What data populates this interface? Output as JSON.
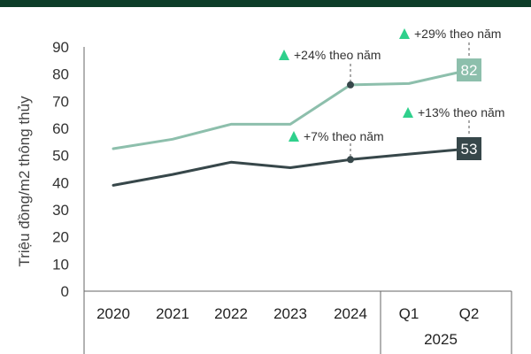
{
  "colors": {
    "header": "#0d3d28",
    "series_upper": "#8dbfac",
    "series_lower": "#37474a",
    "triangle": "#2fd08c",
    "axis": "#666666"
  },
  "chart_data": {
    "type": "line",
    "ylabel": "Triệu đồng/m2 thông thủy",
    "ylim": [
      0,
      90
    ],
    "yticks": [
      "0",
      "10",
      "20",
      "30",
      "40",
      "50",
      "60",
      "70",
      "80",
      "90"
    ],
    "ytick_values": [
      0,
      10,
      20,
      30,
      40,
      50,
      60,
      70,
      80,
      90
    ],
    "categories": [
      "2020",
      "2021",
      "2022",
      "2023",
      "2024",
      "Q1",
      "Q2"
    ],
    "group_label": "2025",
    "series": [
      {
        "key": "upper",
        "values": [
          52.5,
          56,
          61.5,
          61.5,
          76,
          76.5,
          81.5
        ],
        "end_label": "82"
      },
      {
        "key": "lower",
        "values": [
          39,
          43,
          47.5,
          45.5,
          48.5,
          50.5,
          52.5
        ],
        "end_label": "53"
      }
    ],
    "annotations": [
      {
        "text": "+24% theo năm",
        "series": 0,
        "index": 4
      },
      {
        "text": "+7% theo năm",
        "series": 1,
        "index": 4
      },
      {
        "text": "+29% theo năm",
        "series": 0,
        "index": 6
      },
      {
        "text": "+13% theo năm",
        "series": 1,
        "index": 6
      }
    ],
    "grid": false,
    "legend": "none"
  }
}
